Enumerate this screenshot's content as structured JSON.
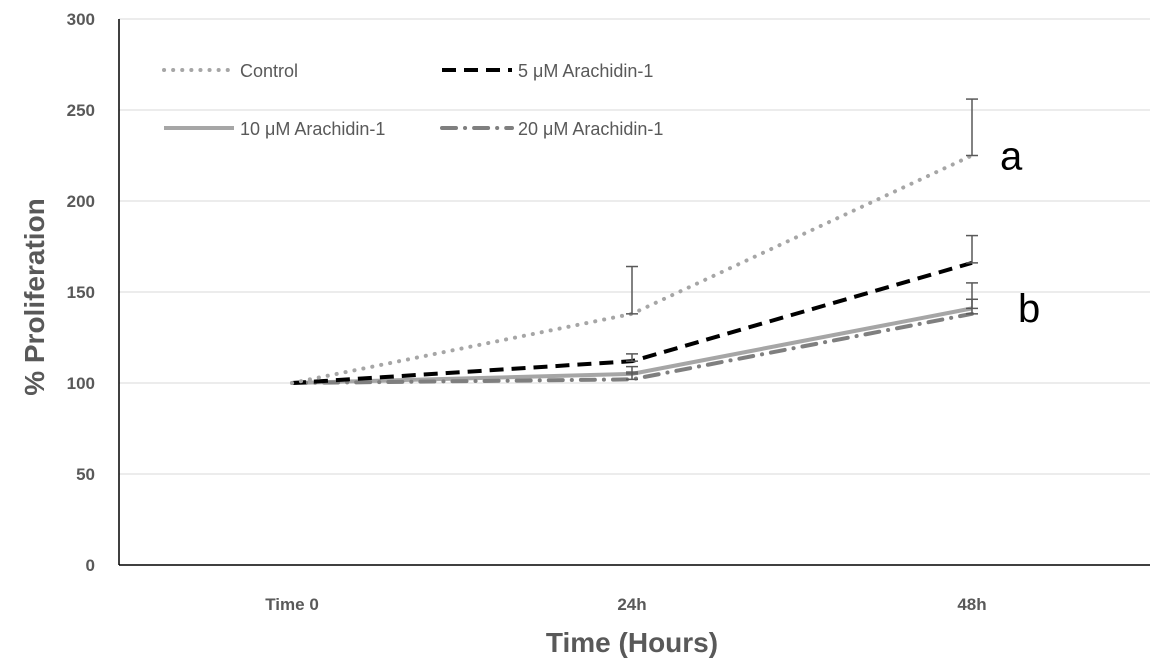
{
  "chart_data": {
    "type": "line",
    "title": "",
    "xlabel": "Time (Hours)",
    "ylabel": "% Proliferation",
    "categories": [
      "Time 0",
      "24h",
      "48h"
    ],
    "ylim": [
      0,
      300
    ],
    "yticks": [
      0,
      50,
      100,
      150,
      200,
      250,
      300
    ],
    "grid": true,
    "legend_position": "top-left",
    "series": [
      {
        "name": "Control",
        "values": [
          100,
          138,
          225
        ],
        "errors": [
          0,
          26,
          31
        ],
        "color": "#a6a6a6",
        "style": "dotted",
        "width": 4
      },
      {
        "name": "5 μM Arachidin-1",
        "values": [
          100,
          112,
          166
        ],
        "errors": [
          0,
          4,
          15
        ],
        "color": "#000000",
        "style": "dashed",
        "width": 4
      },
      {
        "name": "10 μM Arachidin-1",
        "values": [
          100,
          105,
          141
        ],
        "errors": [
          0,
          4,
          14
        ],
        "color": "#a6a6a6",
        "style": "solid",
        "width": 4
      },
      {
        "name": "20 μM Arachidin-1",
        "values": [
          100,
          102,
          138
        ],
        "errors": [
          0,
          4,
          8
        ],
        "color": "#7f7f7f",
        "style": "dashdot",
        "width": 4
      }
    ],
    "annotations": [
      {
        "text": "a",
        "x": "48h",
        "y": 225
      },
      {
        "text": "b",
        "x": "48h",
        "y": 140
      }
    ]
  }
}
